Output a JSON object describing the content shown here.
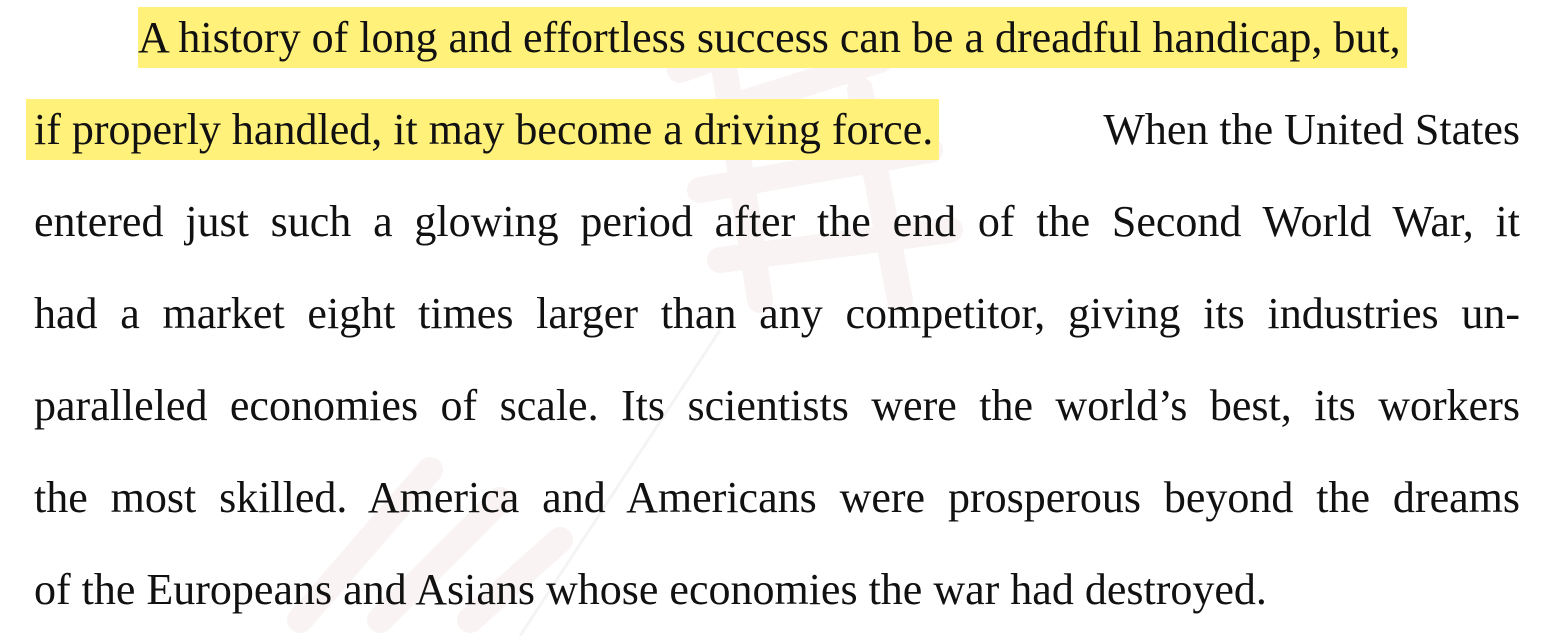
{
  "paragraph": {
    "highlight_part1": "A history of long and effortless success can be a dreadful handicap, but,",
    "highlight_part2": "if properly handled, it may become a driving force.",
    "line2_rest": "When the United States",
    "line3": "entered just such a glowing period after the end of the Second World War, it",
    "line4": "had a market eight times larger than any competitor, giving its industries un-",
    "line5": "paralleled economies of scale. Its scientists were the world’s best, its workers",
    "line6": "the most skilled. America and Americans were prosperous beyond the dreams",
    "line7": "of the Europeans and Asians whose economies the war had destroyed."
  },
  "colors": {
    "highlight": "#fff17a",
    "text": "#111111",
    "watermark": "#f4e6e6"
  }
}
